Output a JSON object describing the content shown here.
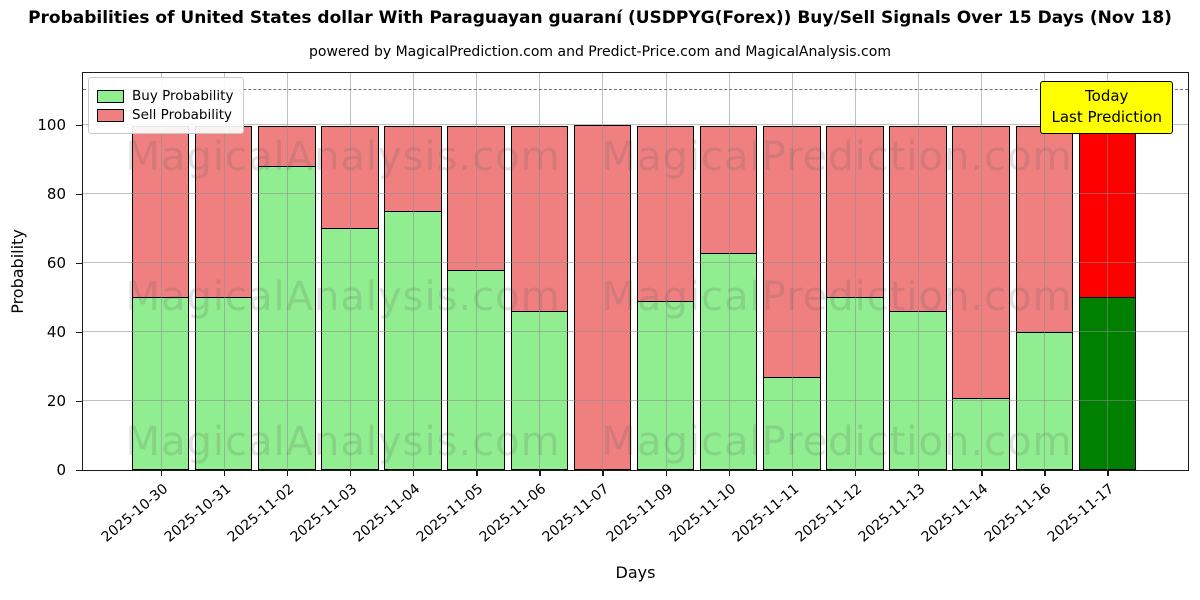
{
  "title": "Probabilities of United States dollar With Paraguayan guaraní (USDPYG(Forex)) Buy/Sell Signals Over 15 Days (Nov 18)",
  "subtitle": "powered by MagicalPrediction.com and Predict-Price.com and MagicalAnalysis.com",
  "watermarks": [
    "MagicalAnalysis.com",
    "MagicalPrediction.com"
  ],
  "legend": {
    "items": [
      {
        "label": "Buy Probability",
        "color": "#90EE90"
      },
      {
        "label": "Sell Probability",
        "color": "#F08080"
      }
    ]
  },
  "annotation": {
    "line1": "Today",
    "line2": "Last Prediction",
    "bg_color": "#FFFF00"
  },
  "chart_data": {
    "type": "bar",
    "stacked": true,
    "title": "Probabilities of United States dollar With Paraguayan guaraní (USDPYG(Forex)) Buy/Sell Signals Over 15 Days (Nov 18)",
    "xlabel": "Days",
    "ylabel": "Probability",
    "categories": [
      "2025-10-30",
      "2025-10-31",
      "2025-11-02",
      "2025-11-03",
      "2025-11-04",
      "2025-11-05",
      "2025-11-06",
      "2025-11-07",
      "2025-11-09",
      "2025-11-10",
      "2025-11-11",
      "2025-11-12",
      "2025-11-13",
      "2025-11-14",
      "2025-11-16",
      "2025-11-17"
    ],
    "series": [
      {
        "name": "Buy Probability",
        "color": "#90EE90",
        "values": [
          50,
          50,
          88,
          70,
          75,
          58,
          46,
          0,
          49,
          63,
          27,
          50,
          46,
          21,
          40,
          50
        ]
      },
      {
        "name": "Sell Probability",
        "color": "#F08080",
        "values": [
          50,
          50,
          12,
          30,
          25,
          42,
          54,
          100,
          51,
          37,
          73,
          50,
          54,
          79,
          60,
          50
        ]
      }
    ],
    "today_bar": {
      "category": "2025-11-17",
      "buy_color": "#008000",
      "sell_color": "#FF0000"
    },
    "yticks": [
      0,
      20,
      40,
      60,
      80,
      100
    ],
    "ylim": [
      0,
      115
    ],
    "dashed_line_y": 110,
    "grid": true,
    "legend_position": "upper left"
  }
}
